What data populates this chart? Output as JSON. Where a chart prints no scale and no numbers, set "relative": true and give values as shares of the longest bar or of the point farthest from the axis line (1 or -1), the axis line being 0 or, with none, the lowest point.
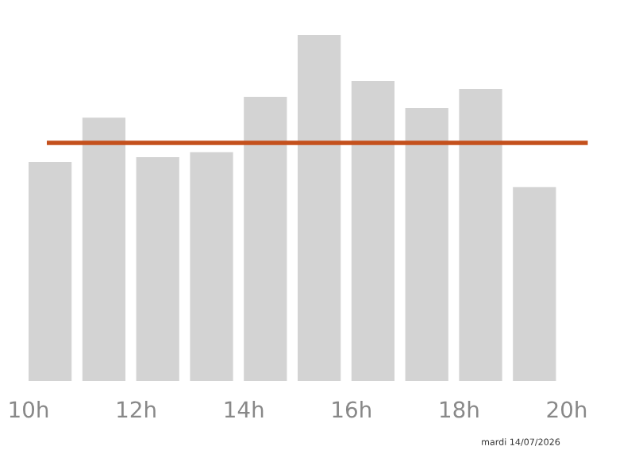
{
  "chart_data": {
    "type": "bar",
    "relative": true,
    "x": [
      10.4,
      11.4,
      12.4,
      13.4,
      14.4,
      15.4,
      16.4,
      17.4,
      18.4,
      19.4
    ],
    "values": [
      0.633,
      0.761,
      0.647,
      0.661,
      0.821,
      1,
      0.867,
      0.789,
      0.844,
      0.56
    ],
    "color": "#d3d3d3",
    "xlim": [
      10,
      20
    ],
    "xticks": [
      {
        "value": 10,
        "label": "10h"
      },
      {
        "value": 12,
        "label": "12h"
      },
      {
        "value": 14,
        "label": "14h"
      },
      {
        "value": 16,
        "label": "16h"
      },
      {
        "value": 18,
        "label": "18h"
      },
      {
        "value": 20,
        "label": "20h"
      }
    ],
    "ref_lines": [
      {
        "axis": "y",
        "value": 0.688,
        "color": "#c4501c"
      }
    ],
    "annotations": [
      "mardi 14/07/2026"
    ],
    "grid": false,
    "legend": false
  }
}
